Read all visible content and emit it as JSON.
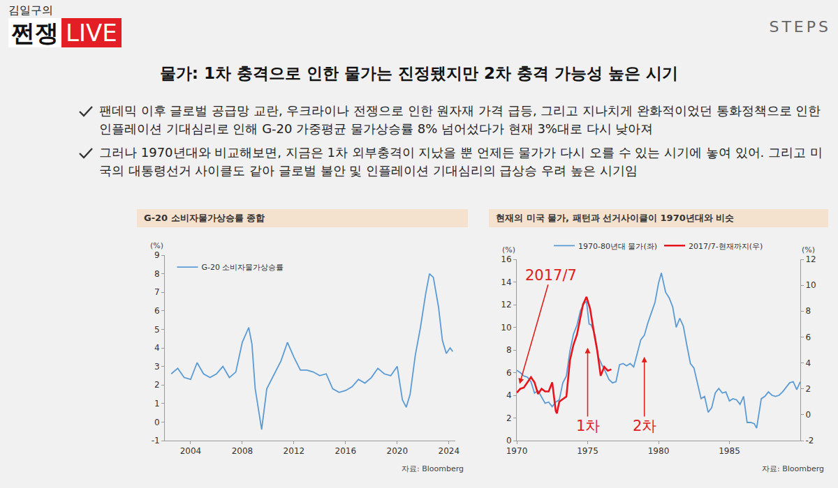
{
  "header": {
    "logo_small": "김일구의",
    "logo_main": "쩐쟁",
    "logo_live": "LIVE",
    "brand": "STEPS"
  },
  "title": "물가: 1차 충격으로 인한 물가는 진정됐지만 2차 충격 가능성 높은 시기",
  "bullets": [
    "팬데믹 이후 글로벌 공급망 교란, 우크라이나 전쟁으로 인한 원자재 가격 급등, 그리고 지나치게 완화적이었던 통화정책으로 인한 인플레이션 기대심리로 인해 G-20 가중평균 물가상승률 8% 넘어섰다가 현재 3%대로 다시 낮아져",
    "그러나 1970년대와 비교해보면, 지금은 1차 외부충격이 지났을 뿐 언제든 물가가 다시 오를 수 있는 시기에 놓여 있어. 그리고 미국의 대통령선거 사이클도 같아 글로벌 불안 및 인플레이션 기대심리의 급상승 우려 높은 시기임"
  ],
  "chart_data": [
    {
      "type": "line",
      "title": "G-20 소비자물가상승률 종합",
      "ylabel": "(%)",
      "source": "자료: Bloomberg",
      "xlim": [
        2002,
        2024.5
      ],
      "xticks": [
        2004,
        2008,
        2012,
        2016,
        2020,
        2024
      ],
      "ylim": [
        -1,
        9
      ],
      "yticks": [
        -1,
        0,
        1,
        2,
        3,
        4,
        5,
        6,
        7,
        8,
        9
      ],
      "grid": false,
      "legend": "top left",
      "series": [
        {
          "name": "G-20 소비자물가상승률",
          "color": "#5b9bd5",
          "x": [
            2002.5,
            2003,
            2003.5,
            2004,
            2004.5,
            2005,
            2005.5,
            2006,
            2006.5,
            2007,
            2007.5,
            2008,
            2008.5,
            2008.75,
            2009,
            2009.5,
            2009.9,
            2010.5,
            2011,
            2011.5,
            2012,
            2012.5,
            2013,
            2013.5,
            2014,
            2014.5,
            2015,
            2015.5,
            2016,
            2016.5,
            2017,
            2017.5,
            2018,
            2018.5,
            2019,
            2019.5,
            2020,
            2020.4,
            2020.7,
            2021,
            2021.4,
            2021.8,
            2022.2,
            2022.5,
            2022.8,
            2023.2,
            2023.5,
            2023.8,
            2024.1,
            2024.3
          ],
          "values": [
            2.6,
            2.9,
            2.4,
            2.3,
            3.2,
            2.6,
            2.4,
            2.6,
            3.0,
            2.4,
            2.7,
            4.3,
            5.1,
            4.2,
            1.8,
            -0.4,
            1.8,
            2.6,
            3.3,
            4.3,
            3.5,
            2.8,
            2.8,
            2.7,
            2.5,
            2.6,
            1.8,
            1.6,
            1.7,
            1.9,
            2.3,
            2.1,
            2.4,
            2.9,
            2.6,
            2.5,
            3.0,
            1.2,
            0.8,
            1.5,
            3.6,
            5.1,
            6.9,
            8.0,
            7.8,
            6.2,
            4.4,
            3.7,
            4.0,
            3.8
          ]
        }
      ]
    },
    {
      "type": "line",
      "title": "현재의 미국 물가, 패턴과 선거사이클이 1970년대와 비슷",
      "ylabel": "(%)",
      "y2label": "(%)",
      "source": "자료: Bloomberg",
      "xlim": [
        1970,
        1990
      ],
      "xticks": [
        1970,
        1975,
        1980,
        1985
      ],
      "ylim": [
        0,
        16
      ],
      "yticks": [
        0,
        2,
        4,
        6,
        8,
        10,
        12,
        14,
        16
      ],
      "y2lim": [
        -2,
        12
      ],
      "y2ticks": [
        -2,
        0,
        2,
        4,
        6,
        8,
        10,
        12
      ],
      "grid": false,
      "legend": "top",
      "series": [
        {
          "name": "1970-80년대 물가(좌)",
          "color": "#5b9bd5",
          "axis": "y",
          "x": [
            1970.0,
            1970.25,
            1970.5,
            1970.75,
            1971.0,
            1971.25,
            1971.5,
            1971.75,
            1972.0,
            1972.25,
            1972.5,
            1972.75,
            1973.0,
            1973.25,
            1973.5,
            1973.75,
            1974.0,
            1974.25,
            1974.5,
            1974.75,
            1974.92,
            1975.1,
            1975.25,
            1975.5,
            1975.75,
            1976.0,
            1976.25,
            1976.5,
            1976.75,
            1977.0,
            1977.25,
            1977.5,
            1977.75,
            1978.0,
            1978.25,
            1978.5,
            1978.75,
            1979.0,
            1979.25,
            1979.5,
            1979.75,
            1980.0,
            1980.2,
            1980.5,
            1980.75,
            1981.0,
            1981.25,
            1981.5,
            1981.75,
            1982.0,
            1982.25,
            1982.5,
            1982.75,
            1983.0,
            1983.25,
            1983.5,
            1983.75,
            1984.0,
            1984.25,
            1984.5,
            1984.75,
            1985.0,
            1985.25,
            1985.5,
            1985.75,
            1986.0,
            1986.25,
            1986.5,
            1986.75,
            1986.92,
            1987.25,
            1987.5,
            1987.75,
            1988.0,
            1988.25,
            1988.5,
            1988.75,
            1989.0,
            1989.25,
            1989.5,
            1989.75,
            1990.0
          ],
          "values": [
            6.2,
            6.0,
            5.7,
            5.6,
            5.2,
            4.2,
            4.4,
            3.8,
            3.3,
            3.4,
            3.0,
            3.4,
            3.6,
            5.1,
            5.7,
            7.9,
            9.4,
            10.2,
            11.5,
            12.1,
            12.3,
            10.3,
            10.2,
            9.4,
            7.4,
            6.7,
            6.1,
            5.4,
            5.1,
            5.2,
            6.7,
            6.8,
            6.6,
            6.8,
            6.5,
            7.7,
            8.9,
            9.3,
            10.4,
            11.3,
            12.2,
            13.9,
            14.8,
            13.1,
            12.6,
            11.8,
            10.0,
            10.8,
            10.1,
            8.4,
            6.8,
            6.4,
            5.1,
            3.7,
            3.9,
            2.5,
            2.9,
            4.2,
            4.6,
            4.2,
            4.3,
            3.5,
            3.7,
            3.6,
            3.2,
            3.9,
            1.6,
            1.6,
            1.5,
            1.1,
            3.7,
            3.9,
            4.3,
            4.0,
            3.9,
            4.0,
            4.3,
            4.7,
            5.1,
            5.2,
            4.5,
            5.2
          ]
        },
        {
          "name": "2017/7-현재까지(우)",
          "color": "#e8141c",
          "axis": "y2",
          "x": [
            1970.0,
            1970.25,
            1970.5,
            1970.75,
            1971.0,
            1971.25,
            1971.5,
            1971.75,
            1972.0,
            1972.25,
            1972.5,
            1972.75,
            1972.83,
            1973.0,
            1973.25,
            1973.5,
            1973.75,
            1974.0,
            1974.25,
            1974.5,
            1974.67,
            1974.92,
            1975.17,
            1975.42,
            1975.67,
            1975.92,
            1976.17,
            1976.42,
            1976.67
          ],
          "values": [
            1.7,
            2.0,
            2.1,
            2.5,
            2.9,
            2.5,
            1.6,
            2.0,
            1.8,
            1.8,
            2.5,
            0.3,
            0.1,
            1.0,
            1.2,
            1.4,
            4.2,
            5.4,
            6.2,
            7.5,
            8.5,
            9.1,
            8.2,
            6.5,
            5.0,
            3.0,
            3.7,
            3.4,
            3.5
          ]
        }
      ],
      "annotations": [
        {
          "text": "2017/7",
          "x": 1972.4,
          "y": 14.6,
          "arrow_to": [
            1970.2,
            5.0
          ],
          "color": "#e0201b"
        },
        {
          "text": "1차",
          "x": 1975,
          "y": 1.3,
          "arrow_to": [
            1975,
            8.2
          ],
          "color": "#e0201b"
        },
        {
          "text": "2차",
          "x": 1979,
          "y": 1.3,
          "arrow_to": [
            1979,
            7.4
          ],
          "color": "#e0201b"
        }
      ]
    }
  ]
}
